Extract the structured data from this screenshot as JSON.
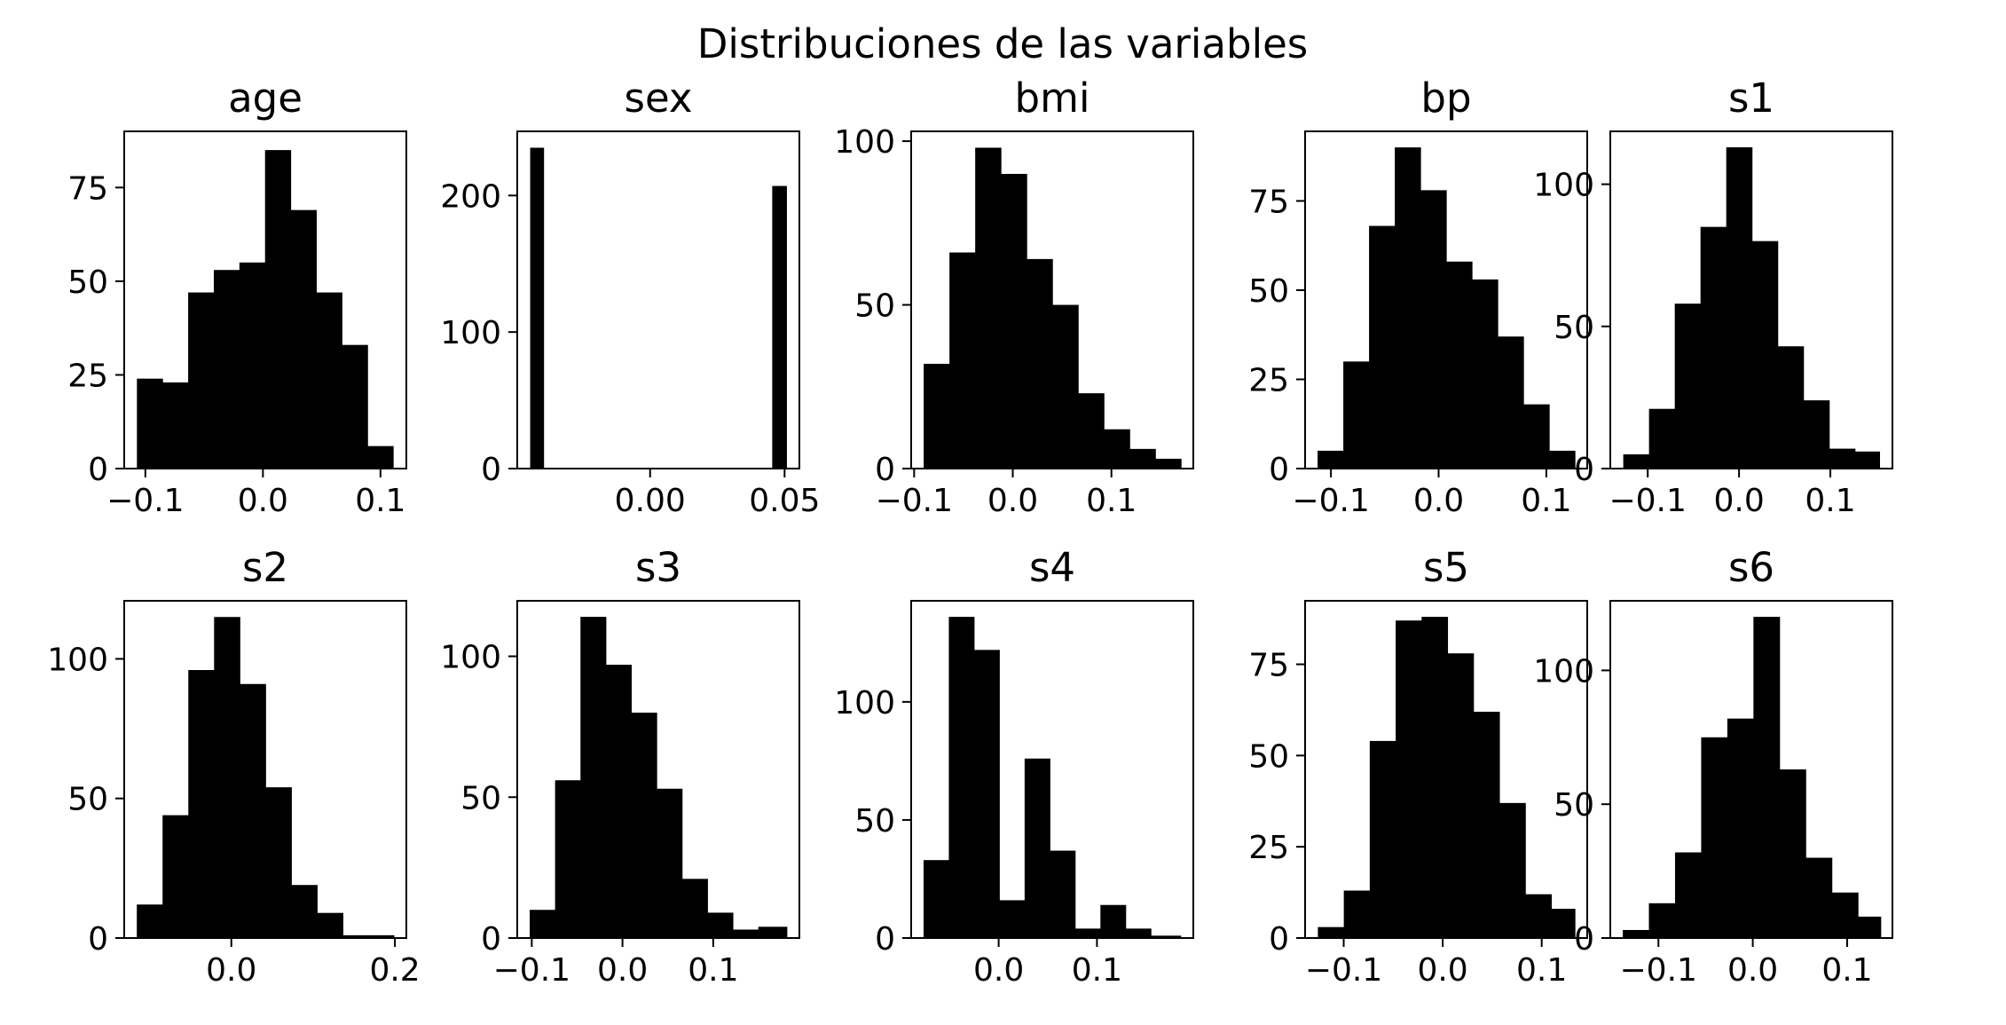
{
  "suptitle": "Distribuciones de las variables",
  "chart_data": [
    {
      "type": "bar",
      "title": "age",
      "bin_edges": [
        -0.1072,
        -0.0854,
        -0.0636,
        -0.0418,
        -0.02,
        0.0018,
        0.0236,
        0.0454,
        0.0672,
        0.089,
        0.1108
      ],
      "counts": [
        24,
        23,
        47,
        53,
        55,
        85,
        69,
        47,
        33,
        6
      ],
      "xlim": [
        -0.118,
        0.122
      ],
      "xticks": [
        -0.1,
        0.0,
        0.1
      ],
      "xtick_labels": [
        "−0.1",
        "0.0",
        "0.1"
      ],
      "ylim": [
        0,
        90
      ],
      "yticks": [
        0,
        25,
        50,
        75
      ],
      "ytick_labels": [
        "0",
        "25",
        "50",
        "75"
      ]
    },
    {
      "type": "bar",
      "title": "sex",
      "bin_edges": [
        -0.0446,
        -0.0396,
        -0.0346,
        -0.0296,
        -0.0246,
        -0.0196,
        -0.0146,
        -0.0096,
        -0.0046,
        0.0004,
        0.0054,
        0.0104,
        0.0154,
        0.0204,
        0.0254,
        0.0304,
        0.0354,
        0.0404,
        0.0454,
        0.0507
      ],
      "counts": [
        235,
        0,
        0,
        0,
        0,
        0,
        0,
        0,
        0,
        0,
        0,
        0,
        0,
        0,
        0,
        0,
        0,
        0,
        207
      ],
      "xlim": [
        -0.0494,
        0.0555
      ],
      "xticks": [
        0.0,
        0.05
      ],
      "xtick_labels": [
        "0.00",
        "0.05"
      ],
      "ylim": [
        0,
        247
      ],
      "yticks": [
        0,
        100,
        200
      ],
      "ytick_labels": [
        "0",
        "100",
        "200"
      ]
    },
    {
      "type": "bar",
      "title": "bmi",
      "bin_edges": [
        -0.0903,
        -0.0642,
        -0.0381,
        -0.012,
        0.0141,
        0.0402,
        0.0663,
        0.0924,
        0.1185,
        0.1446,
        0.1706
      ],
      "counts": [
        32,
        66,
        98,
        90,
        64,
        50,
        23,
        12,
        6,
        3
      ],
      "xlim": [
        -0.103,
        0.183
      ],
      "xticks": [
        -0.1,
        0.0,
        0.1
      ],
      "xtick_labels": [
        "−0.1",
        "0.0",
        "0.1"
      ],
      "ylim": [
        0,
        103
      ],
      "yticks": [
        0,
        50,
        100
      ],
      "ytick_labels": [
        "0",
        "50",
        "100"
      ]
    },
    {
      "type": "bar",
      "title": "bp",
      "bin_edges": [
        -0.1124,
        -0.0885,
        -0.0646,
        -0.0407,
        -0.0168,
        0.0071,
        0.031,
        0.0549,
        0.0788,
        0.1027,
        0.1266
      ],
      "counts": [
        5,
        30,
        68,
        90,
        78,
        58,
        53,
        37,
        18,
        5
      ],
      "xlim": [
        -0.124,
        0.138
      ],
      "xticks": [
        -0.1,
        0.0,
        0.1
      ],
      "xtick_labels": [
        "−0.1",
        "0.0",
        "0.1"
      ],
      "ylim": [
        0,
        94.5
      ],
      "yticks": [
        0,
        25,
        50,
        75
      ],
      "ytick_labels": [
        "0",
        "25",
        "50",
        "75"
      ]
    },
    {
      "type": "bar",
      "title": "s1",
      "bin_edges": [
        -0.1268,
        -0.0986,
        -0.0704,
        -0.0422,
        -0.014,
        0.0142,
        0.0424,
        0.0706,
        0.0988,
        0.127,
        0.1539
      ],
      "counts": [
        5,
        21,
        58,
        85,
        113,
        80,
        43,
        24,
        7,
        6
      ],
      "xlim": [
        -0.141,
        0.168
      ],
      "xticks": [
        -0.1,
        0.0,
        0.1
      ],
      "xtick_labels": [
        "−0.1",
        "0.0",
        "0.1"
      ],
      "ylim": [
        0,
        118.6
      ],
      "yticks": [
        0,
        50,
        100
      ],
      "ytick_labels": [
        "0",
        "50",
        "100"
      ]
    },
    {
      "type": "bar",
      "title": "s2",
      "bin_edges": [
        -0.1156,
        -0.0841,
        -0.0526,
        -0.0211,
        0.0104,
        0.0419,
        0.0734,
        0.1049,
        0.1364,
        0.1679,
        0.1988
      ],
      "counts": [
        12,
        44,
        96,
        115,
        91,
        54,
        19,
        9,
        1,
        1
      ],
      "xlim": [
        -0.131,
        0.214
      ],
      "xticks": [
        0.0,
        0.2
      ],
      "xtick_labels": [
        "0.0",
        "0.2"
      ],
      "ylim": [
        0,
        120.8
      ],
      "yticks": [
        0,
        50,
        100
      ],
      "ytick_labels": [
        "0",
        "50",
        "100"
      ]
    },
    {
      "type": "bar",
      "title": "s3",
      "bin_edges": [
        -0.1023,
        -0.0743,
        -0.0463,
        -0.0183,
        0.0097,
        0.0377,
        0.0657,
        0.0937,
        0.1217,
        0.1497,
        0.1812
      ],
      "counts": [
        10,
        56,
        114,
        97,
        80,
        53,
        21,
        9,
        3,
        4
      ],
      "xlim": [
        -0.116,
        0.195
      ],
      "xticks": [
        -0.1,
        0.0,
        0.1
      ],
      "xtick_labels": [
        "−0.1",
        "0.0",
        "0.1"
      ],
      "ylim": [
        0,
        119.7
      ],
      "yticks": [
        0,
        50,
        100
      ],
      "ytick_labels": [
        "0",
        "50",
        "100"
      ]
    },
    {
      "type": "bar",
      "title": "s4",
      "bin_edges": [
        -0.0764,
        -0.0507,
        -0.025,
        0.0007,
        0.0264,
        0.0521,
        0.0778,
        0.1035,
        0.1292,
        0.1549,
        0.1852
      ],
      "counts": [
        33,
        136,
        122,
        16,
        76,
        37,
        4,
        14,
        4,
        1
      ],
      "xlim": [
        -0.089,
        0.198
      ],
      "xticks": [
        0.0,
        0.1
      ],
      "xtick_labels": [
        "0.0",
        "0.1"
      ],
      "ylim": [
        0,
        142.8
      ],
      "yticks": [
        0,
        50,
        100
      ],
      "ytick_labels": [
        "0",
        "50",
        "100"
      ]
    },
    {
      "type": "bar",
      "title": "s5",
      "bin_edges": [
        -0.1261,
        -0.0999,
        -0.0737,
        -0.0475,
        -0.0213,
        0.0049,
        0.0311,
        0.0573,
        0.0835,
        0.1097,
        0.1336
      ],
      "counts": [
        3,
        13,
        54,
        87,
        88,
        78,
        62,
        37,
        12,
        8
      ],
      "xlim": [
        -0.139,
        0.146
      ],
      "xticks": [
        -0.1,
        0.0,
        0.1
      ],
      "xtick_labels": [
        "−0.1",
        "0.0",
        "0.1"
      ],
      "ylim": [
        0,
        92.4
      ],
      "yticks": [
        0,
        25,
        50,
        75
      ],
      "ytick_labels": [
        "0",
        "25",
        "50",
        "75"
      ]
    },
    {
      "type": "bar",
      "title": "s6",
      "bin_edges": [
        -0.1378,
        -0.1101,
        -0.0824,
        -0.0547,
        -0.027,
        0.0007,
        0.0284,
        0.0561,
        0.0838,
        0.1115,
        0.1356
      ],
      "counts": [
        3,
        13,
        32,
        75,
        82,
        120,
        63,
        30,
        17,
        8
      ],
      "xlim": [
        -0.151,
        0.148
      ],
      "xticks": [
        -0.1,
        0.0,
        0.1
      ],
      "xtick_labels": [
        "−0.1",
        "0.0",
        "0.1"
      ],
      "ylim": [
        0,
        126
      ],
      "yticks": [
        0,
        50,
        100
      ],
      "ytick_labels": [
        "0",
        "50",
        "100"
      ]
    }
  ]
}
